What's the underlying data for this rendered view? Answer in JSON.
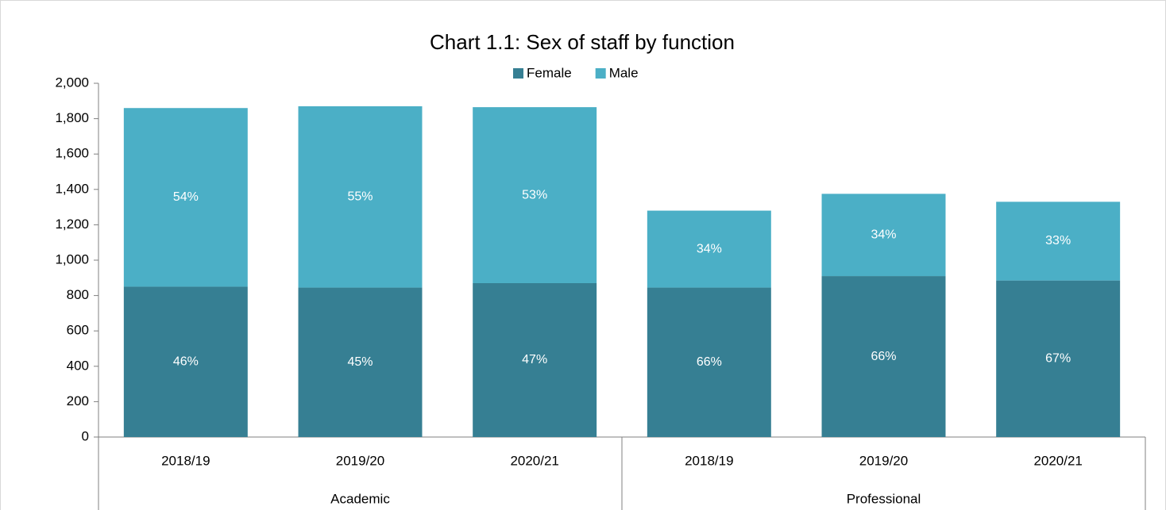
{
  "chart_data": {
    "type": "stacked_bar",
    "title": "Chart 1.1: Sex of staff by function",
    "groups": [
      {
        "name": "Academic",
        "categories": [
          "2018/19",
          "2019/20",
          "2020/21"
        ]
      },
      {
        "name": "Professional",
        "categories": [
          "2018/19",
          "2019/20",
          "2020/21"
        ]
      }
    ],
    "series": [
      {
        "name": "Female",
        "color": "#367f93",
        "values": [
          850,
          845,
          870,
          845,
          910,
          885
        ],
        "value_labels": [
          "46%",
          "45%",
          "47%",
          "66%",
          "66%",
          "67%"
        ]
      },
      {
        "name": "Male",
        "color": "#4bafc6",
        "values": [
          1010,
          1025,
          995,
          435,
          465,
          445
        ],
        "value_labels": [
          "54%",
          "55%",
          "53%",
          "34%",
          "34%",
          "33%"
        ]
      }
    ],
    "ylim": [
      0,
      2000
    ],
    "yticks": [
      0,
      200,
      400,
      600,
      800,
      {
        "value": 1000,
        "label": "1,000"
      },
      {
        "value": 1200,
        "label": "1,200"
      },
      {
        "value": 1400,
        "label": "1,400"
      },
      {
        "value": 1600,
        "label": "1,600"
      },
      {
        "value": 1800,
        "label": "1,800"
      },
      {
        "value": 2000,
        "label": "2,000"
      }
    ],
    "legend": "top"
  }
}
